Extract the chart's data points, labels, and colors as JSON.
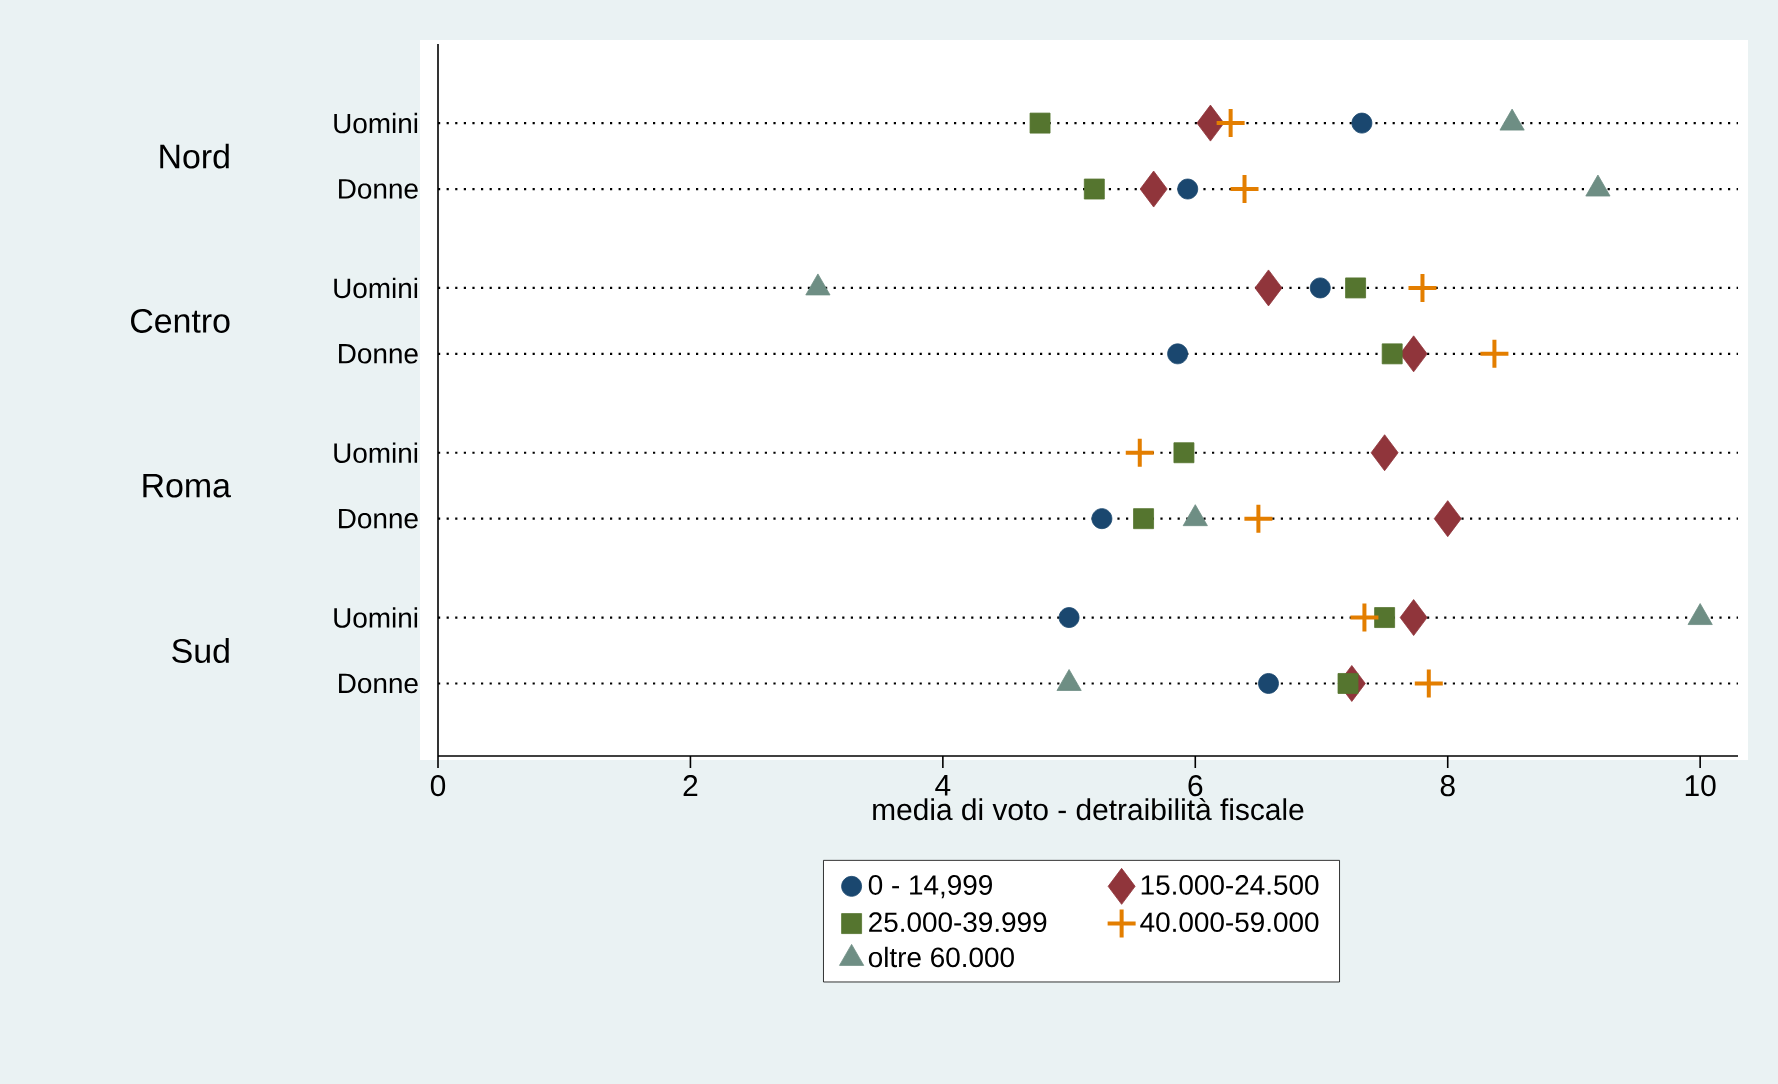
{
  "chart_data": {
    "type": "scatter",
    "orientation": "horizontal",
    "categories": [
      "Uomini",
      "Donne",
      "Uomini",
      "Donne",
      "Uomini",
      "Donne",
      "Uomini",
      "Donne"
    ],
    "annotations": [
      "Nord",
      "Centro",
      "Roma",
      "Sud"
    ],
    "xlabel": "media di voto - detraibilità fiscale",
    "xlim": [
      0,
      10.3
    ],
    "xticks": [
      0,
      2,
      4,
      6,
      8,
      10
    ],
    "grid": "y",
    "legend": "bottom",
    "series": [
      {
        "name": "0 - 14,999",
        "color": "#1a476f",
        "marker": "circle",
        "values": [
          7.32,
          5.94,
          6.99,
          5.86,
          null,
          5.26,
          5.0,
          6.58
        ]
      },
      {
        "name": "15.000-24.500",
        "color": "#90353b",
        "marker": "diamond",
        "values": [
          6.12,
          5.67,
          6.58,
          7.73,
          7.5,
          8.0,
          7.73,
          7.24
        ]
      },
      {
        "name": "25.000-39.999",
        "color": "#55752f",
        "marker": "square",
        "values": [
          4.77,
          5.2,
          7.27,
          7.56,
          5.91,
          5.59,
          7.5,
          7.21
        ]
      },
      {
        "name": "40.000-59.000",
        "color": "#e37e00",
        "marker": "cross",
        "values": [
          6.28,
          6.39,
          7.8,
          8.37,
          5.56,
          6.5,
          7.34,
          7.85
        ]
      },
      {
        "name": "oltre 60.000",
        "color": "#6e8e84",
        "marker": "triangle",
        "values": [
          8.51,
          9.19,
          3.01,
          null,
          null,
          6.0,
          10.0,
          5.0
        ]
      }
    ]
  }
}
